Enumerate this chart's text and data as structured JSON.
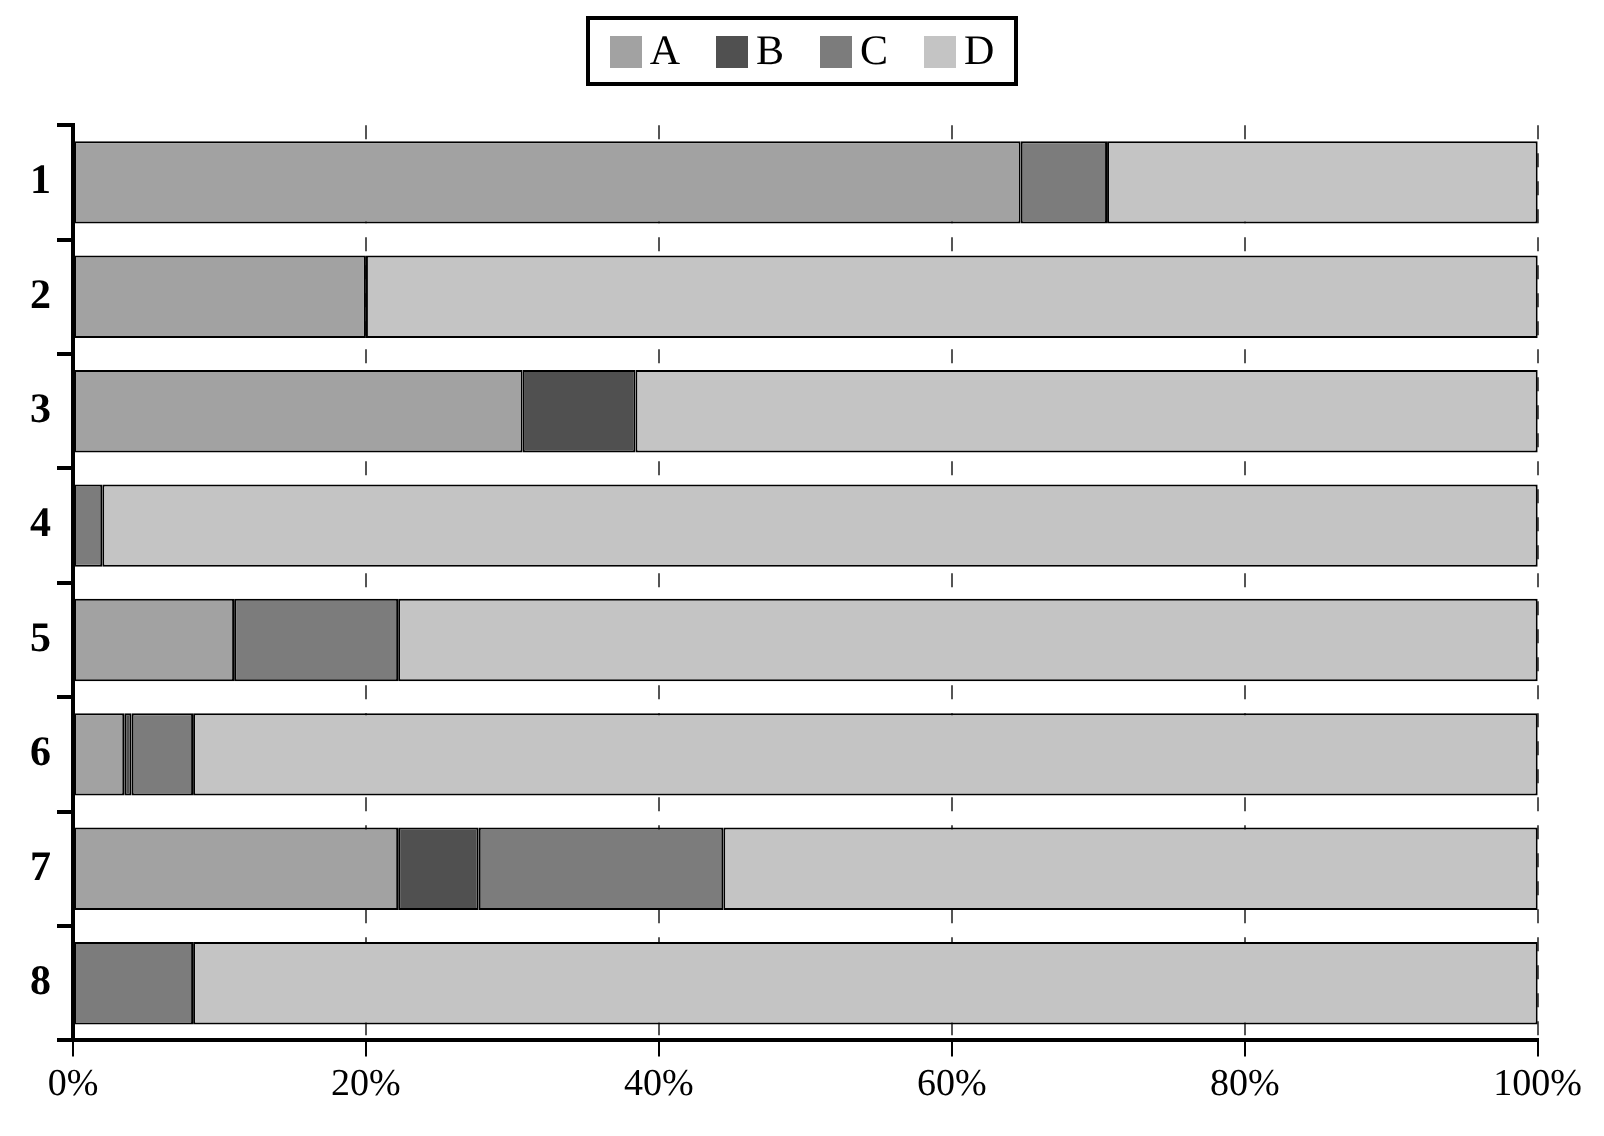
{
  "chart_data": {
    "type": "bar",
    "orientation": "horizontal",
    "stacked": true,
    "categories": [
      "1",
      "2",
      "3",
      "4",
      "5",
      "6",
      "7",
      "8"
    ],
    "series": [
      {
        "name": "A",
        "color": "#a2a2a2",
        "values": [
          64.7,
          20.0,
          30.7,
          null,
          11.0,
          3.5,
          22.2,
          null
        ]
      },
      {
        "name": "B",
        "color": "#505050",
        "values": [
          null,
          null,
          7.7,
          null,
          null,
          0.5,
          5.5,
          null
        ]
      },
      {
        "name": "C",
        "color": "#7c7c7c",
        "values": [
          5.9,
          null,
          null,
          2.0,
          11.2,
          4.2,
          16.7,
          8.2
        ]
      },
      {
        "name": "D",
        "color": "#c4c4c4",
        "values": [
          29.4,
          80.0,
          61.6,
          98.0,
          77.8,
          91.8,
          55.6,
          91.8
        ]
      }
    ],
    "xlim": [
      0,
      100
    ],
    "xticks": [
      {
        "value": 0,
        "label": "0%"
      },
      {
        "value": 20,
        "label": "20%"
      },
      {
        "value": 40,
        "label": "40%"
      },
      {
        "value": 60,
        "label": "60%"
      },
      {
        "value": 80,
        "label": "80%"
      },
      {
        "value": 100,
        "label": "100%"
      }
    ],
    "grid": "x",
    "legend": "top"
  }
}
